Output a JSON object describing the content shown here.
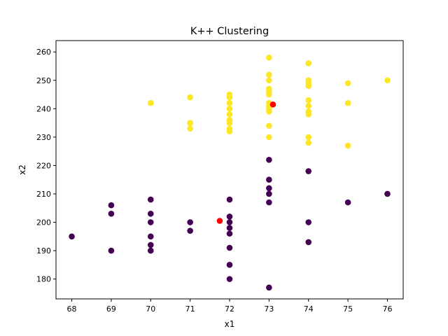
{
  "chart_data": {
    "type": "scatter",
    "title": "K++ Clustering",
    "xlabel": "x1",
    "ylabel": "x2",
    "xlim": [
      67.6,
      76.4
    ],
    "ylim": [
      173,
      264
    ],
    "xticks": [
      68,
      69,
      70,
      71,
      72,
      73,
      74,
      75,
      76
    ],
    "yticks": [
      180,
      190,
      200,
      210,
      220,
      230,
      240,
      250,
      260
    ],
    "grid": false,
    "legend": "none",
    "colors": {
      "cluster_low": "#440154",
      "cluster_high": "#fde725",
      "centroid": "#ff0000"
    },
    "series": [
      {
        "color": "#fde725",
        "points": [
          [
            70,
            242
          ],
          [
            71,
            244
          ],
          [
            71,
            235
          ],
          [
            71,
            233
          ],
          [
            72,
            245
          ],
          [
            72,
            244
          ],
          [
            72,
            242
          ],
          [
            72,
            240
          ],
          [
            72,
            238
          ],
          [
            72,
            236
          ],
          [
            72,
            235
          ],
          [
            72,
            233
          ],
          [
            72,
            232
          ],
          [
            73,
            258
          ],
          [
            73,
            252
          ],
          [
            73,
            250
          ],
          [
            73,
            247
          ],
          [
            73,
            246
          ],
          [
            73,
            245
          ],
          [
            73,
            242
          ],
          [
            73,
            241
          ],
          [
            73,
            240
          ],
          [
            73,
            239
          ],
          [
            73,
            234
          ],
          [
            73,
            230
          ],
          [
            74,
            256
          ],
          [
            74,
            250
          ],
          [
            74,
            249
          ],
          [
            74,
            248
          ],
          [
            74,
            243
          ],
          [
            74,
            241
          ],
          [
            74,
            239
          ],
          [
            74,
            238
          ],
          [
            74,
            230
          ],
          [
            74,
            228
          ],
          [
            75,
            249
          ],
          [
            75,
            242
          ],
          [
            75,
            227
          ],
          [
            76,
            250
          ]
        ]
      },
      {
        "color": "#440154",
        "points": [
          [
            68,
            195
          ],
          [
            69,
            206
          ],
          [
            69,
            203
          ],
          [
            69,
            190
          ],
          [
            70,
            208
          ],
          [
            70,
            203
          ],
          [
            70,
            200
          ],
          [
            70,
            195
          ],
          [
            70,
            192
          ],
          [
            70,
            190
          ],
          [
            71,
            200
          ],
          [
            71,
            197
          ],
          [
            72,
            208
          ],
          [
            72,
            202
          ],
          [
            72,
            200
          ],
          [
            72,
            198
          ],
          [
            72,
            196
          ],
          [
            72,
            191
          ],
          [
            72,
            185
          ],
          [
            72,
            180
          ],
          [
            73,
            222
          ],
          [
            73,
            215
          ],
          [
            73,
            212
          ],
          [
            73,
            210
          ],
          [
            73,
            207
          ],
          [
            73,
            177
          ],
          [
            74,
            218
          ],
          [
            74,
            200
          ],
          [
            74,
            193
          ],
          [
            75,
            207
          ],
          [
            76,
            210
          ]
        ]
      },
      {
        "color": "#ff0000",
        "points": [
          [
            71.75,
            200.5
          ],
          [
            73.1,
            241.5
          ]
        ]
      }
    ]
  }
}
